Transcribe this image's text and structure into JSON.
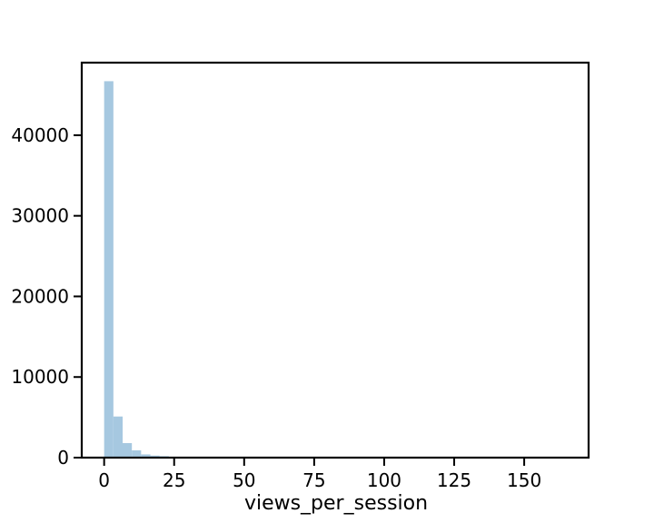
{
  "chart_data": {
    "type": "bar",
    "title": "",
    "xlabel": "views_per_session",
    "ylabel": "",
    "xlim": [
      -8,
      173
    ],
    "ylim": [
      0,
      49000
    ],
    "xticks": [
      0,
      25,
      50,
      75,
      100,
      125,
      150
    ],
    "yticks": [
      0,
      10000,
      20000,
      30000,
      40000
    ],
    "bin_width": 3.3,
    "bar_color": "#a6c8e0",
    "grid": false,
    "bins": [
      {
        "x0": 0.0,
        "x1": 3.3,
        "value": 46700
      },
      {
        "x0": 3.3,
        "x1": 6.6,
        "value": 5100
      },
      {
        "x0": 6.6,
        "x1": 9.9,
        "value": 1800
      },
      {
        "x0": 9.9,
        "x1": 13.2,
        "value": 900
      },
      {
        "x0": 13.2,
        "x1": 16.5,
        "value": 400
      },
      {
        "x0": 16.5,
        "x1": 19.8,
        "value": 250
      },
      {
        "x0": 19.8,
        "x1": 23.1,
        "value": 180
      },
      {
        "x0": 23.1,
        "x1": 26.4,
        "value": 90
      },
      {
        "x0": 26.4,
        "x1": 29.7,
        "value": 50
      },
      {
        "x0": 29.7,
        "x1": 33.0,
        "value": 30
      },
      {
        "x0": 33.0,
        "x1": 36.3,
        "value": 20
      },
      {
        "x0": 36.3,
        "x1": 39.6,
        "value": 12
      },
      {
        "x0": 39.6,
        "x1": 42.9,
        "value": 8
      }
    ]
  }
}
